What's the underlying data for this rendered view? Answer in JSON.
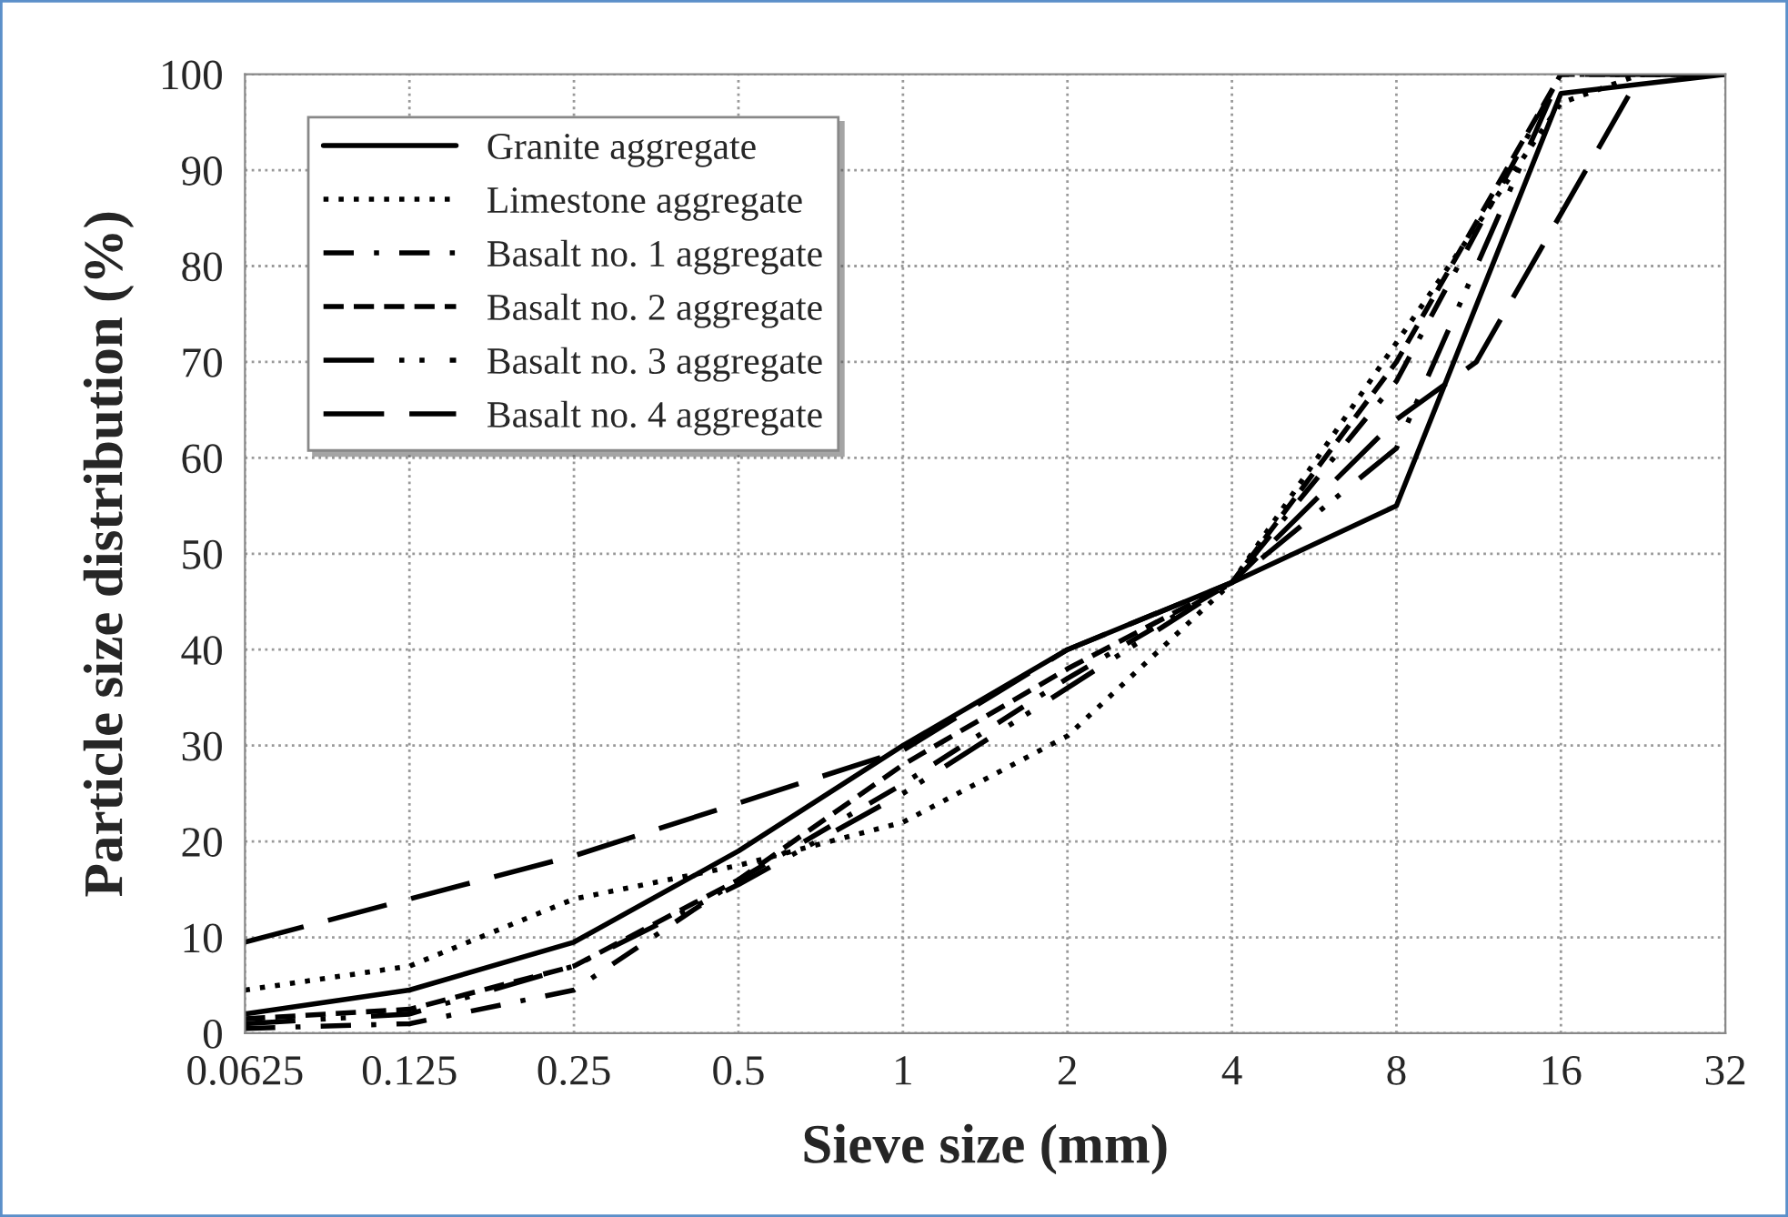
{
  "chart_data": {
    "type": "line",
    "xlabel": "Sieve size (mm)",
    "ylabel": "Particle size distribution (%)",
    "log": "x",
    "xlim": [
      0.0625,
      32
    ],
    "xticks": [
      0.0625,
      0.125,
      0.25,
      0.5,
      1,
      2,
      4,
      8,
      16,
      32
    ],
    "ylim": [
      0,
      100
    ],
    "yticks": [
      0,
      10,
      20,
      30,
      40,
      50,
      60,
      70,
      80,
      90,
      100
    ],
    "grid": true,
    "legend": "top left",
    "marker": "none",
    "series": [
      {
        "name": "Granite aggregate",
        "color": "#000000",
        "line_style": "solid",
        "x": [
          0.0625,
          0.125,
          0.25,
          0.5,
          1,
          2,
          4,
          8,
          16,
          32
        ],
        "values": [
          2,
          4.5,
          9.5,
          19,
          30,
          40,
          47,
          55,
          98,
          100
        ]
      },
      {
        "name": "Limestone aggregate",
        "color": "#000000",
        "line_style": "dotted",
        "x": [
          0.0625,
          0.125,
          0.25,
          0.5,
          1,
          2,
          4,
          8,
          16,
          22.4,
          32
        ],
        "values": [
          4.5,
          7,
          14,
          17.5,
          22,
          31,
          47,
          72,
          97,
          100,
          100
        ]
      },
      {
        "name": "Basalt no. 1 aggregate",
        "color": "#000000",
        "line_style": "dashdot",
        "x": [
          0.0625,
          0.125,
          0.25,
          0.5,
          1,
          2,
          4,
          8,
          16,
          32
        ],
        "values": [
          0.5,
          1,
          4.5,
          16,
          26,
          37,
          47,
          68,
          100,
          100
        ]
      },
      {
        "name": "Basalt no. 2 aggregate",
        "color": "#000000",
        "line_style": "dashed",
        "x": [
          0.0625,
          0.125,
          0.25,
          0.5,
          1,
          2,
          4,
          8,
          16,
          32
        ],
        "values": [
          1.5,
          2.5,
          7,
          16,
          28,
          38,
          47,
          70,
          100,
          100
        ]
      },
      {
        "name": "Basalt no. 3 aggregate",
        "color": "#000000",
        "line_style": "dashdotdot",
        "x": [
          0.0625,
          0.125,
          0.25,
          0.5,
          1,
          2,
          4,
          8,
          16,
          32
        ],
        "values": [
          1,
          2,
          7,
          15.5,
          25,
          36,
          47,
          61,
          100,
          100
        ]
      },
      {
        "name": "Basalt no. 4 aggregate",
        "color": "#000000",
        "line_style": "longdash",
        "x": [
          0.0625,
          0.125,
          0.25,
          0.5,
          1,
          2,
          4,
          8,
          11.2,
          22.4,
          32
        ],
        "values": [
          9.5,
          14,
          18.5,
          24,
          29.5,
          40,
          47,
          64,
          70,
          100,
          100
        ]
      }
    ]
  }
}
